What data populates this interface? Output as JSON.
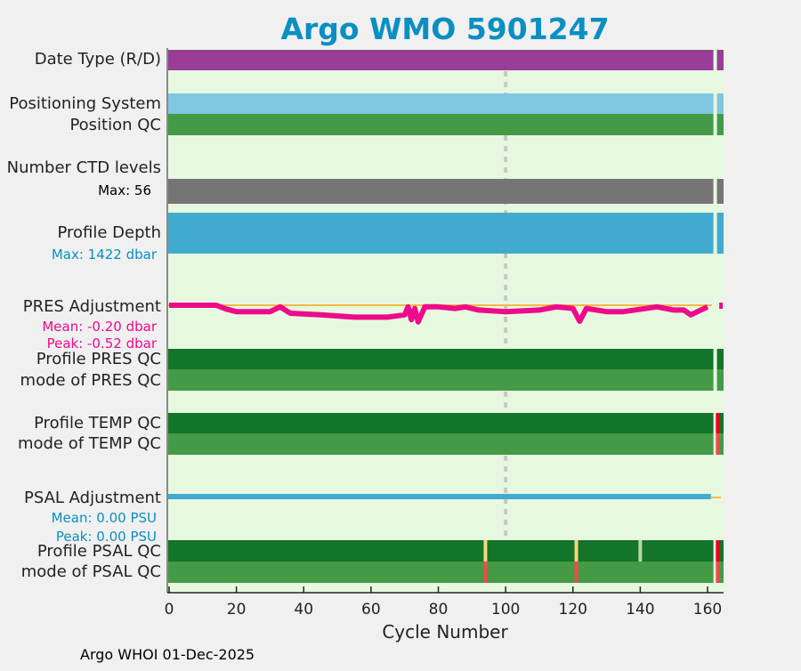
{
  "chart_data": {
    "type": "table",
    "title": "Argo WMO 5901247",
    "xlabel": "Cycle Number",
    "xlim": [
      -1,
      165
    ],
    "xticks": [
      0,
      20,
      40,
      60,
      80,
      100,
      120,
      140,
      160
    ],
    "reference_cycle": 100,
    "gap_cycles": [
      162
    ],
    "rows": [
      {
        "label": "Date Type (R/D)",
        "color": "#993d99"
      },
      {
        "label": "Positioning System",
        "color": "#7fc6e0"
      },
      {
        "label": "Position QC",
        "color": "#459a45"
      },
      {
        "label": "Number CTD levels",
        "sub": "Max: 56",
        "color": "#757575"
      },
      {
        "label": "Profile Depth",
        "sub": "Max: 1422 dbar",
        "color": "#43aacf"
      },
      {
        "label": "PRES Adjustment",
        "sub": [
          "Mean: -0.20 dbar",
          "Peak: -0.52 dbar"
        ],
        "color": "#ee0a8a"
      },
      {
        "label": "Profile PRES QC",
        "color": "#13742a"
      },
      {
        "label": "mode of PRES QC",
        "color": "#459a45"
      },
      {
        "label": "Profile TEMP QC",
        "color": "#13742a",
        "flag_cycles": [
          {
            "cycle": 163,
            "color": "#e8001e"
          }
        ]
      },
      {
        "label": "mode of TEMP QC",
        "color": "#459a45",
        "flag_cycles": [
          {
            "cycle": 163,
            "color": "#f04a4a"
          }
        ]
      },
      {
        "label": "PSAL Adjustment",
        "sub": [
          "Mean: 0.00 PSU",
          "Peak: 0.00 PSU"
        ],
        "color": "#43aacf"
      },
      {
        "label": "Profile PSAL QC",
        "color": "#13742a",
        "flag_cycles": [
          {
            "cycle": 94,
            "color": "#f5d77a"
          },
          {
            "cycle": 121,
            "color": "#f5d77a"
          },
          {
            "cycle": 140,
            "color": "#b6d9a8"
          },
          {
            "cycle": 163,
            "color": "#e8001e"
          }
        ]
      },
      {
        "label": "mode of PSAL QC",
        "color": "#459a45",
        "flag_cycles": [
          {
            "cycle": 94,
            "color": "#f04a4a"
          },
          {
            "cycle": 121,
            "color": "#f04a4a"
          },
          {
            "cycle": 163,
            "color": "#f04a4a"
          }
        ]
      }
    ],
    "pres_adjustment": {
      "cycles": [
        0,
        14,
        17,
        20,
        30,
        33,
        36,
        45,
        55,
        65,
        70,
        71,
        72,
        73,
        74,
        76,
        80,
        85,
        88,
        92,
        100,
        110,
        115,
        120,
        122,
        124,
        130,
        135,
        145,
        150,
        153,
        155,
        160
      ],
      "values": [
        0,
        0,
        -0.12,
        -0.2,
        -0.2,
        -0.05,
        -0.25,
        -0.3,
        -0.37,
        -0.37,
        -0.3,
        -0.05,
        -0.45,
        -0.1,
        -0.52,
        -0.05,
        -0.05,
        -0.1,
        -0.05,
        -0.15,
        -0.2,
        -0.15,
        -0.05,
        -0.1,
        -0.5,
        -0.1,
        -0.2,
        -0.2,
        -0.05,
        -0.15,
        -0.15,
        -0.3,
        -0.05
      ]
    },
    "psal_adjustment_value": 0.0
  },
  "footer": "Argo WHOI 01-Dec-2025"
}
